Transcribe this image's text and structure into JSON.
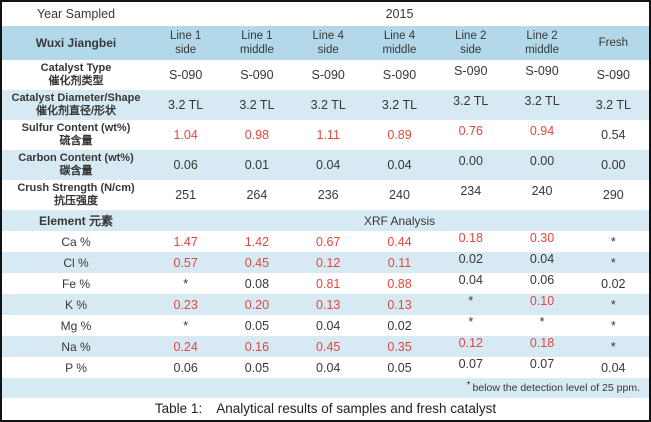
{
  "colors": {
    "site_band": "#b2d8e9",
    "stripe_band": "#d7eaf3",
    "accent_red": "#e2473f",
    "text": "#373737",
    "frame_border": "#121212"
  },
  "table": {
    "year_row": {
      "label": "Year Sampled",
      "value": "2015"
    },
    "site_header": {
      "label": "Wuxi Jiangbei",
      "columns": [
        {
          "line": "Line 1",
          "position": "side"
        },
        {
          "line": "Line 1",
          "position": "middle"
        },
        {
          "line": "Line 4",
          "position": "side"
        },
        {
          "line": "Line 4",
          "position": "middle"
        },
        {
          "line": "Line 2",
          "position": "side"
        },
        {
          "line": "Line 2",
          "position": "middle"
        },
        {
          "line": "Fresh",
          "position": ""
        }
      ]
    },
    "property_rows": [
      {
        "label_en": "Catalyst Type",
        "label_zh": "催化剂类型",
        "cells": [
          {
            "text": "S-090",
            "red": false
          },
          {
            "text": "S-090",
            "red": false
          },
          {
            "text": "S-090",
            "red": false
          },
          {
            "text": "S-090",
            "red": false
          },
          {
            "text": "S-090",
            "red": false
          },
          {
            "text": "S-090",
            "red": false
          },
          {
            "text": "S-090",
            "red": false
          }
        ]
      },
      {
        "label_en": "Catalyst Diameter/Shape",
        "label_zh": "催化剂直径/形状",
        "cells": [
          {
            "text": "3.2 TL",
            "red": false
          },
          {
            "text": "3.2 TL",
            "red": false
          },
          {
            "text": "3.2 TL",
            "red": false
          },
          {
            "text": "3.2 TL",
            "red": false
          },
          {
            "text": "3.2 TL",
            "red": false
          },
          {
            "text": "3.2 TL",
            "red": false
          },
          {
            "text": "3.2 TL",
            "red": false
          }
        ]
      },
      {
        "label_en": "Sulfur Content (wt%)",
        "label_zh": "硫含量",
        "cells": [
          {
            "text": "1.04",
            "red": true
          },
          {
            "text": "0.98",
            "red": true
          },
          {
            "text": "1.11",
            "red": true
          },
          {
            "text": "0.89",
            "red": true
          },
          {
            "text": "0.76",
            "red": true
          },
          {
            "text": "0.94",
            "red": true
          },
          {
            "text": "0.54",
            "red": false
          }
        ]
      },
      {
        "label_en": "Carbon Content (wt%)",
        "label_zh": "碳含量",
        "cells": [
          {
            "text": "0.06",
            "red": false
          },
          {
            "text": "0.01",
            "red": false
          },
          {
            "text": "0.04",
            "red": false
          },
          {
            "text": "0.04",
            "red": false
          },
          {
            "text": "0.00",
            "red": false
          },
          {
            "text": "0.00",
            "red": false
          },
          {
            "text": "0.00",
            "red": false
          }
        ]
      },
      {
        "label_en": "Crush Strength (N/cm)",
        "label_zh": "抗压强度",
        "cells": [
          {
            "text": "251",
            "red": false
          },
          {
            "text": "264",
            "red": false
          },
          {
            "text": "236",
            "red": false
          },
          {
            "text": "240",
            "red": false
          },
          {
            "text": "234",
            "red": false
          },
          {
            "text": "240",
            "red": false
          },
          {
            "text": "290",
            "red": false
          }
        ]
      }
    ],
    "element_header": {
      "label": "Element 元素",
      "value": "XRF Analysis"
    },
    "element_rows": [
      {
        "label": "Ca %",
        "cells": [
          {
            "text": "1.47",
            "red": true
          },
          {
            "text": "1.42",
            "red": true
          },
          {
            "text": "0.67",
            "red": true
          },
          {
            "text": "0.44",
            "red": true
          },
          {
            "text": "0.18",
            "red": true
          },
          {
            "text": "0.30",
            "red": true
          },
          {
            "text": "*",
            "red": false
          }
        ]
      },
      {
        "label": "Cl %",
        "cells": [
          {
            "text": "0.57",
            "red": true
          },
          {
            "text": "0.45",
            "red": true
          },
          {
            "text": "0.12",
            "red": true
          },
          {
            "text": "0.11",
            "red": true
          },
          {
            "text": "0.02",
            "red": false
          },
          {
            "text": "0.04",
            "red": false
          },
          {
            "text": "*",
            "red": false
          }
        ]
      },
      {
        "label": "Fe %",
        "cells": [
          {
            "text": "*",
            "red": false
          },
          {
            "text": "0.08",
            "red": false
          },
          {
            "text": "0.81",
            "red": true
          },
          {
            "text": "0.88",
            "red": true
          },
          {
            "text": "0.04",
            "red": false
          },
          {
            "text": "0.06",
            "red": false
          },
          {
            "text": "0.02",
            "red": false
          }
        ]
      },
      {
        "label": "K %",
        "cells": [
          {
            "text": "0.23",
            "red": true
          },
          {
            "text": "0.20",
            "red": true
          },
          {
            "text": "0.13",
            "red": true
          },
          {
            "text": "0.13",
            "red": true
          },
          {
            "text": "*",
            "red": false
          },
          {
            "text": "0.10",
            "red": true
          },
          {
            "text": "*",
            "red": false
          }
        ]
      },
      {
        "label": "Mg %",
        "cells": [
          {
            "text": "*",
            "red": false
          },
          {
            "text": "0.05",
            "red": false
          },
          {
            "text": "0.04",
            "red": false
          },
          {
            "text": "0.02",
            "red": false
          },
          {
            "text": "*",
            "red": false
          },
          {
            "text": "*",
            "red": false
          },
          {
            "text": "*",
            "red": false
          }
        ]
      },
      {
        "label": "Na %",
        "cells": [
          {
            "text": "0.24",
            "red": true
          },
          {
            "text": "0.16",
            "red": true
          },
          {
            "text": "0.45",
            "red": true
          },
          {
            "text": "0.35",
            "red": true
          },
          {
            "text": "0.12",
            "red": true
          },
          {
            "text": "0.18",
            "red": true
          },
          {
            "text": "*",
            "red": false
          }
        ]
      },
      {
        "label": "P %",
        "cells": [
          {
            "text": "0.06",
            "red": false
          },
          {
            "text": "0.05",
            "red": false
          },
          {
            "text": "0.04",
            "red": false
          },
          {
            "text": "0.05",
            "red": false
          },
          {
            "text": "0.07",
            "red": false
          },
          {
            "text": "0.07",
            "red": false
          },
          {
            "text": "0.04",
            "red": false
          }
        ]
      }
    ],
    "footnote_marker": "*",
    "footnote_text": "below the detection level of 25 ppm.",
    "caption_prefix": "Table 1:",
    "caption_text": "Analytical results of samples and fresh catalyst"
  }
}
